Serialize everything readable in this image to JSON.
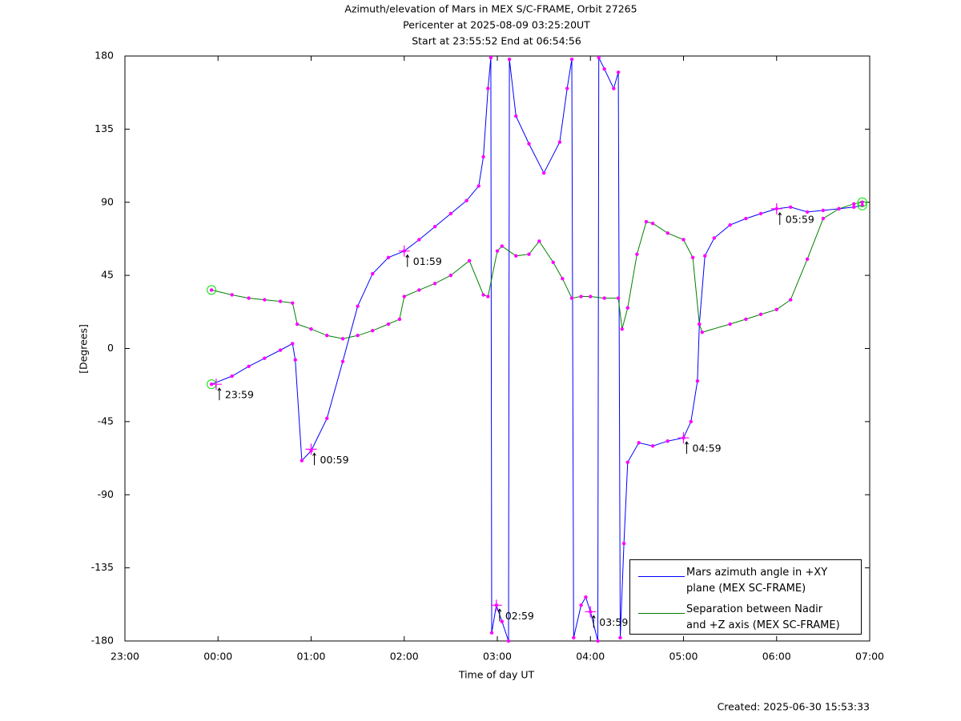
{
  "chart_data": {
    "type": "line",
    "title": "Azimuth/elevation of Mars in MEX S/C-FRAME,  Orbit 27265",
    "subtitle": [
      "Pericenter at 2025-08-09 03:25:20UT",
      "Start at 23:55:52 End at 06:54:56"
    ],
    "xlabel": "Time of day UT",
    "ylabel": "[Degrees]",
    "footer": "Created: 2025-06-30 15:53:33",
    "xlim": [
      -1,
      7
    ],
    "xticks": [
      {
        "value": -1,
        "label": "23:00"
      },
      {
        "value": 0,
        "label": "00:00"
      },
      {
        "value": 1,
        "label": "01:00"
      },
      {
        "value": 2,
        "label": "02:00"
      },
      {
        "value": 3,
        "label": "03:00"
      },
      {
        "value": 4,
        "label": "04:00"
      },
      {
        "value": 5,
        "label": "05:00"
      },
      {
        "value": 6,
        "label": "06:00"
      },
      {
        "value": 7,
        "label": "07:00"
      }
    ],
    "ylim": [
      -180,
      180
    ],
    "yticks": [
      -180,
      -135,
      -90,
      -45,
      0,
      45,
      90,
      135,
      180
    ],
    "grid": false,
    "legend": "lower right",
    "marker_color": "#ff00ff",
    "series": [
      {
        "name": "Mars azimuth angle in +XY\nplane (MEX SC-FRAME)",
        "color": "#0000ff",
        "x": [
          -0.07,
          0.15,
          0.33,
          0.5,
          0.67,
          0.8,
          0.83,
          0.9,
          1.0,
          1.17,
          1.34,
          1.5,
          1.66,
          1.83,
          2.0,
          2.16,
          2.33,
          2.5,
          2.67,
          2.8,
          2.85,
          2.9,
          2.93,
          2.94,
          2.99,
          3.05,
          3.12,
          3.13,
          3.2,
          3.34,
          3.5,
          3.67,
          3.75,
          3.8,
          3.82,
          3.9,
          3.95,
          4.0,
          4.08,
          4.09,
          4.15,
          4.25,
          4.3,
          4.32,
          4.36,
          4.4,
          4.52,
          4.67,
          4.83,
          5.0,
          5.08,
          5.15,
          5.17,
          5.23,
          5.33,
          5.5,
          5.67,
          5.83,
          6.0,
          6.15,
          6.33,
          6.5,
          6.67,
          6.83,
          6.92
        ],
        "values": [
          -22,
          -17,
          -11,
          -6,
          -1,
          3,
          -7,
          -69,
          -63,
          -43,
          -8,
          26,
          46,
          56,
          60,
          67,
          75,
          83,
          91,
          100,
          118,
          160,
          179,
          -175,
          -158,
          -168,
          -180,
          178,
          143,
          126,
          108,
          127,
          160,
          178,
          -178,
          -158,
          -153,
          -162,
          -180,
          179,
          172,
          160,
          170,
          -178,
          -120,
          -70,
          -58,
          -60,
          -57,
          -55,
          -45,
          -20,
          15,
          57,
          68,
          76,
          80,
          83,
          86,
          87,
          84,
          85,
          86,
          87,
          88
        ]
      },
      {
        "name": "Separation between Nadir\nand +Z axis (MEX SC-FRAME)",
        "color": "#008000",
        "x": [
          -0.07,
          0.15,
          0.33,
          0.5,
          0.67,
          0.8,
          0.85,
          1.0,
          1.17,
          1.34,
          1.5,
          1.66,
          1.83,
          1.95,
          2.0,
          2.16,
          2.33,
          2.5,
          2.7,
          2.85,
          2.9,
          3.0,
          3.05,
          3.2,
          3.34,
          3.45,
          3.6,
          3.7,
          3.8,
          3.9,
          4.0,
          4.15,
          4.3,
          4.34,
          4.4,
          4.5,
          4.6,
          4.67,
          4.83,
          5.0,
          5.1,
          5.17,
          5.2,
          5.5,
          5.67,
          5.83,
          6.0,
          6.15,
          6.33,
          6.5,
          6.67,
          6.83,
          6.92
        ],
        "values": [
          36,
          33,
          31,
          30,
          29,
          28,
          15,
          12,
          8,
          6,
          8,
          11,
          15,
          18,
          32,
          36,
          40,
          45,
          54,
          33,
          32,
          60,
          63,
          57,
          58,
          66,
          53,
          43,
          31,
          32,
          32,
          31,
          31,
          12,
          25,
          58,
          78,
          77,
          71,
          67,
          56,
          15,
          10,
          15,
          18,
          21,
          24,
          30,
          55,
          80,
          86,
          89,
          90
        ]
      }
    ],
    "annotations": [
      {
        "text": "23:59",
        "x": -0.02,
        "y": -22
      },
      {
        "text": "00:59",
        "x": 1.0,
        "y": -62
      },
      {
        "text": "01:59",
        "x": 2.0,
        "y": 60
      },
      {
        "text": "02:59",
        "x": 2.99,
        "y": -158
      },
      {
        "text": "03:59",
        "x": 4.0,
        "y": -162
      },
      {
        "text": "04:59",
        "x": 5.0,
        "y": -55
      },
      {
        "text": "05:59",
        "x": 6.0,
        "y": 86
      }
    ]
  }
}
